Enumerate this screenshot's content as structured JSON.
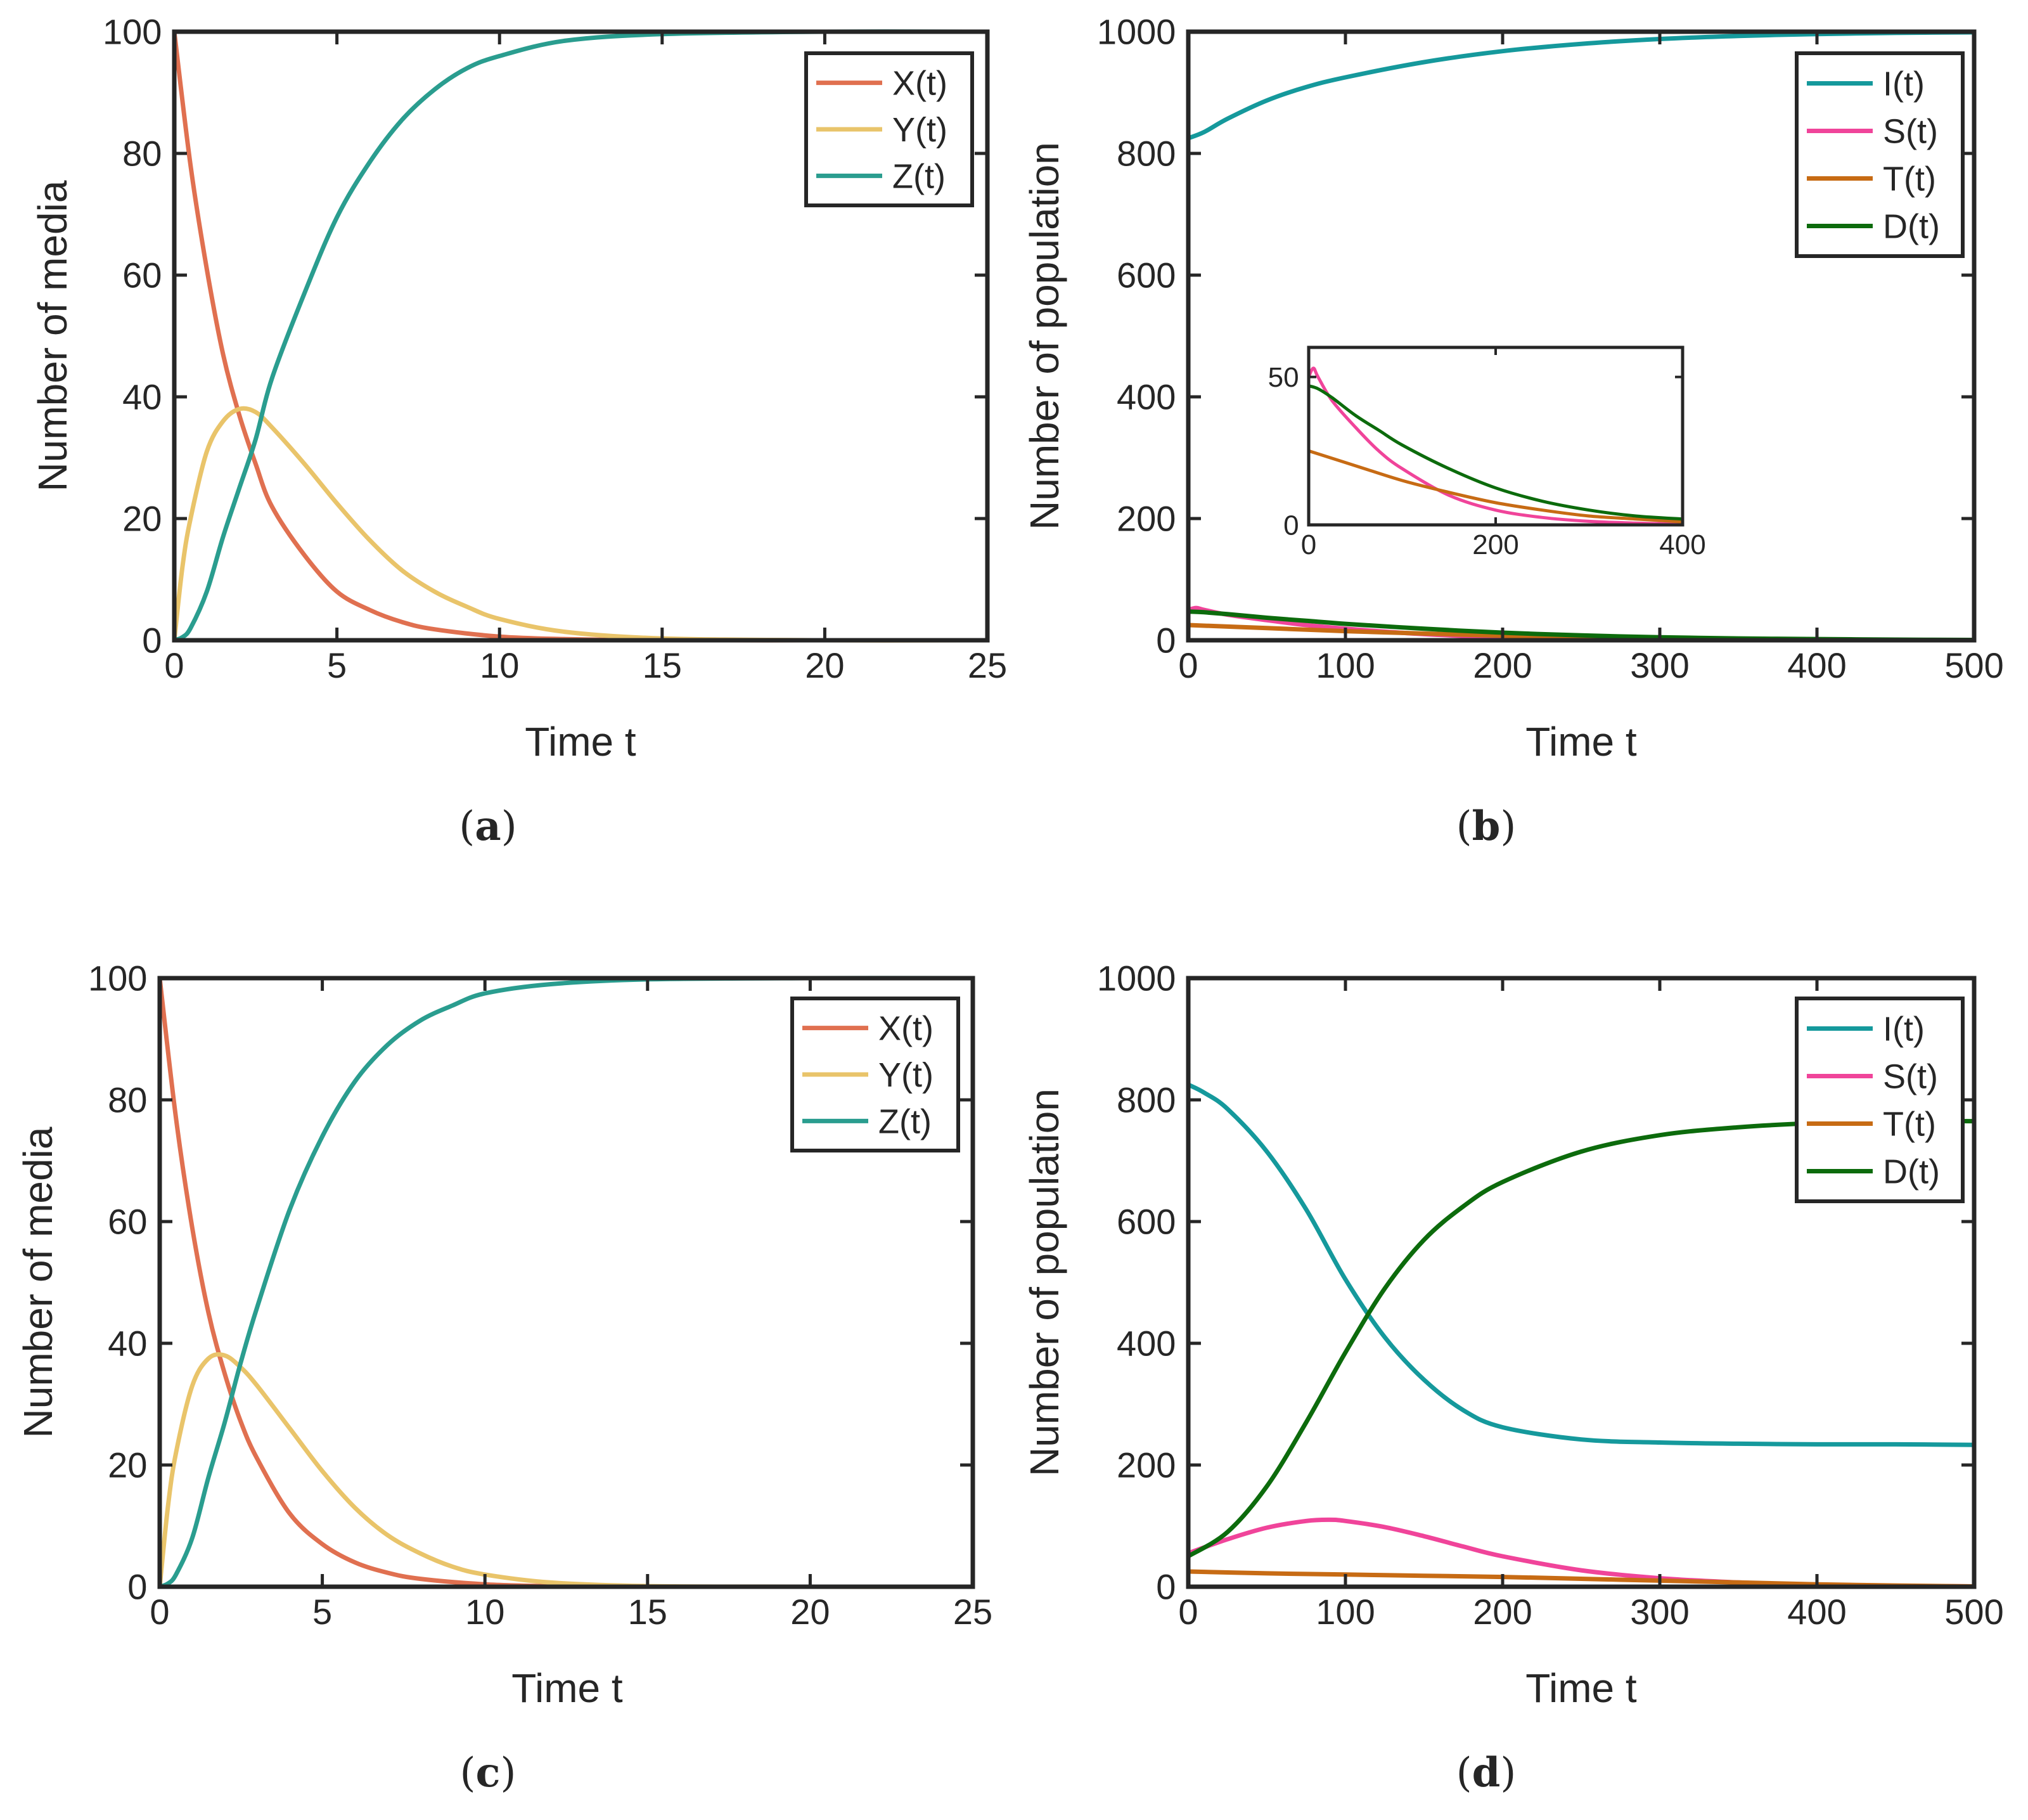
{
  "chart_data": [
    {
      "id": "a",
      "type": "line",
      "caption": "a",
      "xlabel": "Time t",
      "ylabel": "Number of media",
      "xlim": [
        0,
        25
      ],
      "ylim": [
        0,
        100
      ],
      "xticks": [
        0,
        5,
        10,
        15,
        20,
        25
      ],
      "xtick_labels": [
        "0",
        "5",
        "10",
        "15",
        "20",
        "25"
      ],
      "yticks": [
        0,
        20,
        40,
        60,
        80,
        100
      ],
      "ytick_labels": [
        "0",
        "20",
        "40",
        "60",
        "80",
        "100"
      ],
      "legend_position": "top-right",
      "series": [
        {
          "name": "X(t)",
          "color": "#E07050",
          "x": [
            0,
            0.5,
            1,
            1.5,
            2,
            2.5,
            3,
            4,
            5,
            6,
            7,
            8,
            10,
            12,
            15,
            20,
            25
          ],
          "y": [
            100,
            78,
            61,
            47,
            37,
            29,
            22,
            14,
            8,
            5,
            3,
            1.8,
            0.6,
            0.2,
            0,
            0,
            0
          ]
        },
        {
          "name": "Y(t)",
          "color": "#E9C46A",
          "x": [
            0,
            0.25,
            0.5,
            1,
            1.5,
            2,
            2.5,
            3,
            4,
            5,
            6,
            7,
            8,
            9,
            10,
            12,
            15,
            20,
            25
          ],
          "y": [
            0,
            12,
            20,
            31,
            36,
            38,
            37.5,
            35,
            29,
            22.5,
            16.5,
            11.5,
            8,
            5.5,
            3.5,
            1.4,
            0.3,
            0,
            0
          ]
        },
        {
          "name": "Z(t)",
          "color": "#2A9D8F",
          "x": [
            0,
            0.25,
            0.5,
            1,
            1.5,
            2,
            2.5,
            3,
            4,
            5,
            6,
            7,
            8,
            9,
            10,
            12,
            15,
            20,
            25
          ],
          "y": [
            0,
            0.5,
            2,
            8,
            17,
            25,
            33,
            43,
            57,
            69.5,
            78.5,
            85.5,
            90.5,
            94,
            96,
            98.5,
            99.6,
            100,
            100
          ]
        }
      ]
    },
    {
      "id": "b",
      "type": "line",
      "caption": "b",
      "xlabel": "Time t",
      "ylabel": "Number of population",
      "xlim": [
        0,
        500
      ],
      "ylim": [
        0,
        1000
      ],
      "xticks": [
        0,
        100,
        200,
        300,
        400,
        500
      ],
      "xtick_labels": [
        "0",
        "100",
        "200",
        "300",
        "400",
        "500"
      ],
      "yticks": [
        0,
        200,
        400,
        600,
        800,
        1000
      ],
      "ytick_labels": [
        "0",
        "200",
        "400",
        "600",
        "800",
        "1000"
      ],
      "legend_position": "top-right",
      "series": [
        {
          "name": "I(t)",
          "color": "#15999C",
          "x": [
            0,
            10,
            25,
            50,
            75,
            100,
            150,
            200,
            250,
            300,
            350,
            400,
            450,
            500
          ],
          "y": [
            825,
            835,
            857,
            887,
            909,
            925,
            950,
            968,
            980,
            988,
            993,
            996,
            998,
            999
          ]
        },
        {
          "name": "S(t)",
          "color": "#F0449A",
          "x": [
            0,
            5,
            10,
            25,
            50,
            75,
            100,
            150,
            200,
            250,
            300,
            350,
            400,
            450,
            500
          ],
          "y": [
            50,
            53,
            50,
            42,
            33,
            25,
            19,
            10,
            5,
            2.5,
            1.2,
            0.6,
            0.3,
            0.1,
            0
          ]
        },
        {
          "name": "T(t)",
          "color": "#C76B14",
          "x": [
            0,
            50,
            100,
            150,
            200,
            250,
            300,
            350,
            400,
            450,
            500
          ],
          "y": [
            25,
            20,
            15,
            11,
            7.5,
            5,
            3,
            2,
            1,
            0.5,
            0
          ]
        },
        {
          "name": "D(t)",
          "color": "#0C6B0C",
          "x": [
            0,
            10,
            25,
            50,
            75,
            100,
            150,
            200,
            250,
            300,
            350,
            400,
            450,
            500
          ],
          "y": [
            47,
            46,
            43,
            37,
            32,
            27,
            19,
            12.5,
            8,
            5,
            3,
            2,
            1,
            0.5
          ]
        }
      ],
      "inset": {
        "xlim": [
          0,
          400
        ],
        "ylim": [
          0,
          60
        ],
        "xticks": [
          0,
          200,
          400
        ],
        "xtick_labels": [
          "0",
          "200",
          "400"
        ],
        "yticks": [
          0,
          50
        ],
        "ytick_labels": [
          "0",
          "50"
        ],
        "series": [
          {
            "name": "S(t)",
            "color": "#F0449A",
            "x": [
              0,
              5,
              10,
              25,
              50,
              75,
              100,
              150,
              200,
              250,
              300,
              350,
              400
            ],
            "y": [
              50,
              53,
              50,
              42,
              33,
              25,
              19,
              10,
              5,
              2.5,
              1.2,
              0.6,
              0.3
            ]
          },
          {
            "name": "T(t)",
            "color": "#C76B14",
            "x": [
              0,
              50,
              100,
              150,
              200,
              250,
              300,
              350,
              400
            ],
            "y": [
              25,
              20,
              15,
              11,
              7.5,
              5,
              3,
              2,
              1
            ]
          },
          {
            "name": "D(t)",
            "color": "#0C6B0C",
            "x": [
              0,
              10,
              25,
              50,
              75,
              100,
              150,
              200,
              250,
              300,
              350,
              400
            ],
            "y": [
              47,
              46,
              43,
              37,
              32,
              27,
              19,
              12.5,
              8,
              5,
              3,
              2
            ]
          }
        ]
      }
    },
    {
      "id": "c",
      "type": "line",
      "caption": "c",
      "xlabel": "Time t",
      "ylabel": "Number of media",
      "xlim": [
        0,
        25
      ],
      "ylim": [
        0,
        100
      ],
      "xticks": [
        0,
        5,
        10,
        15,
        20,
        25
      ],
      "xtick_labels": [
        "0",
        "5",
        "10",
        "15",
        "20",
        "25"
      ],
      "yticks": [
        0,
        20,
        40,
        60,
        80,
        100
      ],
      "ytick_labels": [
        "0",
        "20",
        "40",
        "60",
        "80",
        "100"
      ],
      "legend_position": "top-right",
      "series": [
        {
          "name": "X(t)",
          "color": "#E07050",
          "x": [
            0,
            0.5,
            1,
            1.5,
            2,
            2.5,
            3,
            4,
            5,
            6,
            7,
            8,
            10,
            12,
            15,
            20,
            25
          ],
          "y": [
            100,
            77,
            59,
            45,
            35,
            27,
            21,
            12,
            7,
            4,
            2.3,
            1.3,
            0.4,
            0.1,
            0,
            0,
            0
          ]
        },
        {
          "name": "Y(t)",
          "color": "#E9C46A",
          "x": [
            0,
            0.25,
            0.5,
            1,
            1.5,
            2,
            2.5,
            3,
            4,
            5,
            6,
            7,
            8,
            9,
            10,
            12,
            15,
            20,
            25
          ],
          "y": [
            0,
            13,
            22,
            33,
            37.5,
            38,
            36,
            33,
            26,
            19,
            13,
            8.5,
            5.5,
            3.3,
            2,
            0.7,
            0.1,
            0,
            0
          ]
        },
        {
          "name": "Z(t)",
          "color": "#2A9D8F",
          "x": [
            0,
            0.25,
            0.5,
            1,
            1.5,
            2,
            2.5,
            3,
            4,
            5,
            6,
            7,
            8,
            9,
            10,
            12,
            15,
            20,
            25
          ],
          "y": [
            0,
            0.5,
            2,
            8,
            18,
            27,
            37,
            46,
            62,
            74,
            83,
            89,
            93,
            95.5,
            97.5,
            99,
            99.8,
            100,
            100
          ]
        }
      ]
    },
    {
      "id": "d",
      "type": "line",
      "caption": "d",
      "xlabel": "Time t",
      "ylabel": "Number of population",
      "xlim": [
        0,
        500
      ],
      "ylim": [
        0,
        1000
      ],
      "xticks": [
        0,
        100,
        200,
        300,
        400,
        500
      ],
      "xtick_labels": [
        "0",
        "100",
        "200",
        "300",
        "400",
        "500"
      ],
      "yticks": [
        0,
        200,
        400,
        600,
        800,
        1000
      ],
      "ytick_labels": [
        "0",
        "200",
        "400",
        "600",
        "800",
        "1000"
      ],
      "legend_position": "top-right",
      "series": [
        {
          "name": "I(t)",
          "color": "#15999C",
          "x": [
            0,
            10,
            25,
            50,
            75,
            100,
            125,
            150,
            175,
            200,
            250,
            300,
            350,
            400,
            450,
            500
          ],
          "y": [
            825,
            812,
            785,
            715,
            620,
            505,
            410,
            340,
            290,
            262,
            242,
            237,
            235,
            234,
            234,
            233
          ]
        },
        {
          "name": "S(t)",
          "color": "#F0449A",
          "x": [
            0,
            25,
            50,
            75,
            90,
            100,
            125,
            150,
            175,
            200,
            250,
            300,
            350,
            400,
            450,
            500
          ],
          "y": [
            55,
            78,
            97,
            108,
            110,
            108,
            98,
            83,
            66,
            50,
            27,
            14,
            7,
            3,
            1.5,
            0.5
          ]
        },
        {
          "name": "T(t)",
          "color": "#C76B14",
          "x": [
            0,
            50,
            100,
            150,
            200,
            250,
            300,
            350,
            400,
            450,
            500
          ],
          "y": [
            25,
            22,
            20,
            18,
            16,
            13,
            10,
            7,
            4,
            2,
            0.5
          ]
        },
        {
          "name": "D(t)",
          "color": "#0C6B0C",
          "x": [
            0,
            25,
            50,
            75,
            100,
            125,
            150,
            175,
            200,
            250,
            300,
            350,
            400,
            450,
            500
          ],
          "y": [
            50,
            90,
            165,
            270,
            385,
            490,
            570,
            625,
            665,
            715,
            742,
            755,
            762,
            765,
            765
          ]
        }
      ]
    }
  ]
}
